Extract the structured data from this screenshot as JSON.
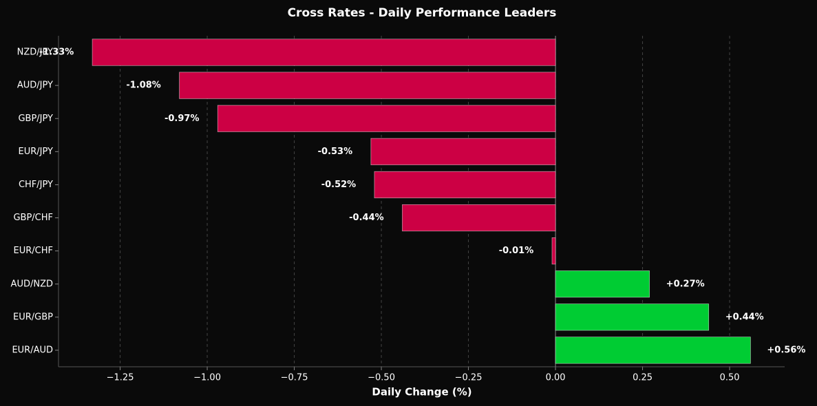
{
  "chart_data": {
    "type": "barh",
    "title": "Cross Rates - Daily Performance Leaders",
    "xlabel": "Daily Change (%)",
    "categories": [
      "NZD/JPY",
      "AUD/JPY",
      "GBP/JPY",
      "EUR/JPY",
      "CHF/JPY",
      "GBP/CHF",
      "EUR/CHF",
      "AUD/NZD",
      "EUR/GBP",
      "EUR/AUD"
    ],
    "values": [
      -1.33,
      -1.08,
      -0.97,
      -0.53,
      -0.52,
      -0.44,
      -0.01,
      0.27,
      0.44,
      0.56
    ],
    "value_labels": [
      "-1.33%",
      "-1.08%",
      "-0.97%",
      "-0.53%",
      "-0.52%",
      "-0.44%",
      "-0.01%",
      "+0.27%",
      "+0.44%",
      "+0.56%"
    ],
    "negative_color": "#cc0044",
    "positive_color": "#00cc33",
    "xlim": [
      -1.427,
      0.658
    ],
    "xticks": [
      {
        "value": -1.25,
        "label": "−1.25"
      },
      {
        "value": -1.0,
        "label": "−1.00"
      },
      {
        "value": -0.75,
        "label": "−0.75"
      },
      {
        "value": -0.5,
        "label": "−0.50"
      },
      {
        "value": -0.25,
        "label": "−0.25"
      },
      {
        "value": 0,
        "label": "0.00"
      },
      0.25,
      {
        "value": 0.5,
        "label": "0.50"
      }
    ],
    "grid": true
  }
}
